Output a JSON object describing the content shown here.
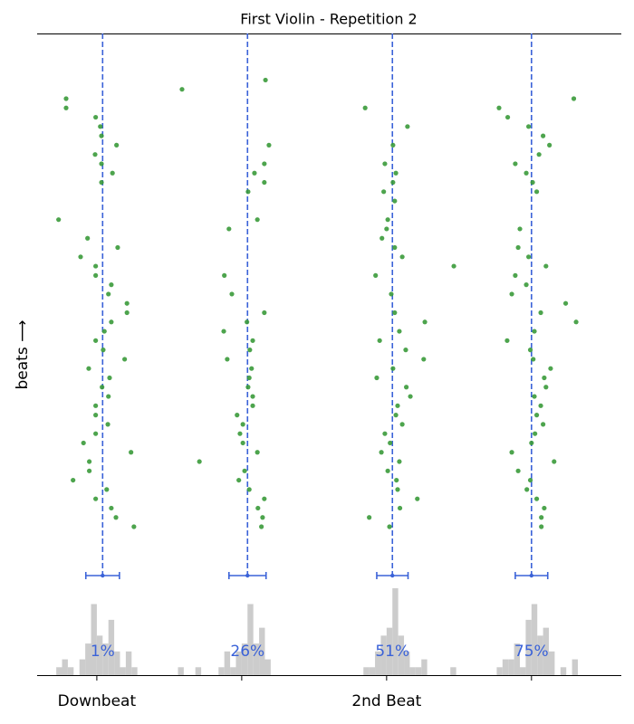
{
  "chart_data": {
    "type": "scatter",
    "title": "First Violin - Repetition 2",
    "ylabel": "beats ⟶",
    "color": "#3a9a3a",
    "xlim": [
      -0.103,
      0.905
    ],
    "ylim": [
      -5.25,
      53
    ],
    "xticks": [
      {
        "value": 0,
        "label": "Downbeat"
      },
      {
        "value": 0.25,
        "label": null
      },
      {
        "value": 0.5,
        "label": "2nd Beat"
      },
      {
        "value": 0.75,
        "label": null
      }
    ],
    "x": [
      -0.053,
      -0.053,
      -0.002,
      0.006,
      0.008,
      0.034,
      -0.003,
      0.008,
      0.027,
      0.008,
      -0.066,
      -0.016,
      0.036,
      -0.028,
      -0.002,
      -0.002,
      0.025,
      0.02,
      0.052,
      0.052,
      0.025,
      0.013,
      -0.002,
      0.011,
      0.048,
      -0.014,
      0.022,
      0.009,
      0.02,
      -0.002,
      -0.002,
      0.019,
      -0.002,
      -0.023,
      0.059,
      -0.013,
      -0.013,
      -0.041,
      0.017,
      -0.002,
      0.025,
      0.033,
      0.064,
      0.147,
      0.291,
      0.297,
      0.289,
      0.272,
      0.289,
      0.261,
      0.277,
      0.228,
      0.22,
      0.233,
      0.289,
      0.259,
      0.219,
      0.269,
      0.264,
      0.225,
      0.267,
      0.263,
      0.261,
      0.269,
      0.269,
      0.242,
      0.252,
      0.247,
      0.252,
      0.277,
      0.177,
      0.255,
      0.245,
      0.263,
      0.289,
      0.278,
      0.286,
      0.284,
      0.463,
      0.536,
      0.511,
      0.497,
      0.516,
      0.511,
      0.495,
      0.514,
      0.502,
      0.5,
      0.492,
      0.514,
      0.527,
      0.616,
      0.481,
      0.508,
      0.514,
      0.566,
      0.522,
      0.488,
      0.533,
      0.564,
      0.511,
      0.483,
      0.534,
      0.541,
      0.519,
      0.516,
      0.527,
      0.497,
      0.506,
      0.491,
      0.522,
      0.502,
      0.517,
      0.519,
      0.553,
      0.523,
      0.47,
      0.505,
      0.823,
      0.694,
      0.709,
      0.745,
      0.77,
      0.781,
      0.763,
      0.722,
      0.741,
      0.752,
      0.759,
      0.73,
      0.727,
      0.745,
      0.775,
      0.722,
      0.741,
      0.716,
      0.809,
      0.766,
      0.827,
      0.755,
      0.708,
      0.748,
      0.753,
      0.783,
      0.772,
      0.775,
      0.755,
      0.766,
      0.759,
      0.77,
      0.756,
      0.75,
      0.716,
      0.789,
      0.727,
      0.748,
      0.742,
      0.759,
      0.772,
      0.767,
      0.767
    ],
    "y": [
      46,
      45,
      44,
      43,
      42,
      41,
      40,
      39,
      38,
      37,
      33,
      31,
      30,
      29,
      28,
      27,
      26,
      25,
      24,
      23,
      22,
      21,
      20,
      19,
      18,
      17,
      16,
      15,
      14,
      13,
      12,
      11,
      10,
      9,
      8,
      7,
      6,
      5,
      4,
      3,
      2,
      1,
      0,
      47,
      48,
      41,
      39,
      38,
      37,
      36,
      33,
      32,
      27,
      25,
      23,
      22,
      21,
      20,
      19,
      18,
      17,
      16,
      15,
      14,
      13,
      12,
      11,
      10,
      9,
      8,
      7,
      6,
      5,
      4,
      3,
      2,
      1,
      0,
      45,
      43,
      41,
      39,
      38,
      37,
      36,
      35,
      33,
      32,
      31,
      30,
      29,
      28,
      27,
      25,
      23,
      22,
      21,
      20,
      19,
      18,
      17,
      16,
      15,
      14,
      13,
      12,
      11,
      10,
      9,
      8,
      7,
      6,
      5,
      4,
      3,
      2,
      1,
      0,
      46,
      45,
      44,
      43,
      42,
      41,
      40,
      39,
      38,
      37,
      36,
      32,
      30,
      29,
      28,
      27,
      26,
      25,
      24,
      23,
      22,
      21,
      20,
      19,
      18,
      17,
      16,
      15,
      14,
      13,
      12,
      11,
      10,
      9,
      8,
      7,
      6,
      5,
      4,
      3,
      2,
      1,
      0
    ],
    "mean_lines": {
      "color": "#3a62d8",
      "values": [
        0.01,
        0.26,
        0.51,
        0.75
      ],
      "value_labels": [
        "1%",
        "26%",
        "51%",
        "75%"
      ],
      "errors": [
        0.029,
        0.032,
        0.027,
        0.028
      ]
    },
    "histogram": {
      "color": "#cccccc",
      "ylim": [
        0,
        11
      ],
      "bins": [
        -0.07,
        -0.06,
        -0.05,
        -0.04,
        -0.03,
        -0.02,
        -0.01,
        0,
        0.01,
        0.02,
        0.03,
        0.04,
        0.05,
        0.06,
        0.07,
        0.08,
        0.09,
        0.1,
        0.11,
        0.12,
        0.13,
        0.14,
        0.15,
        0.16,
        0.17,
        0.18,
        0.19,
        0.2,
        0.21,
        0.22,
        0.23,
        0.24,
        0.25,
        0.26,
        0.27,
        0.28,
        0.29,
        0.3,
        0.31,
        0.32,
        0.33,
        0.34,
        0.35,
        0.36,
        0.37,
        0.38,
        0.39,
        0.4,
        0.41,
        0.42,
        0.43,
        0.44,
        0.45,
        0.46,
        0.47,
        0.48,
        0.49,
        0.5,
        0.51,
        0.52,
        0.53,
        0.54,
        0.55,
        0.56,
        0.57,
        0.58,
        0.59,
        0.6,
        0.61,
        0.62,
        0.63,
        0.64,
        0.65,
        0.66,
        0.67,
        0.68,
        0.69,
        0.7,
        0.71,
        0.72,
        0.73,
        0.74,
        0.75,
        0.76,
        0.77,
        0.78,
        0.79,
        0.8,
        0.81,
        0.82,
        0.83
      ],
      "counts": [
        1,
        2,
        1,
        0,
        2,
        4,
        9,
        5,
        4,
        7,
        3,
        1,
        3,
        1,
        0,
        0,
        0,
        0,
        0,
        0,
        0,
        1,
        0,
        0,
        1,
        0,
        0,
        0,
        1,
        3,
        1,
        3,
        4,
        9,
        4,
        6,
        2,
        0,
        0,
        0,
        0,
        0,
        0,
        0,
        0,
        0,
        0,
        0,
        0,
        0,
        0,
        0,
        0,
        1,
        1,
        3,
        5,
        6,
        11,
        5,
        3,
        1,
        1,
        2,
        0,
        0,
        0,
        0,
        1,
        0,
        0,
        0,
        0,
        0,
        0,
        0,
        1,
        2,
        2,
        4,
        1,
        7,
        9,
        5,
        6,
        3,
        0,
        1,
        0,
        2
      ]
    }
  }
}
